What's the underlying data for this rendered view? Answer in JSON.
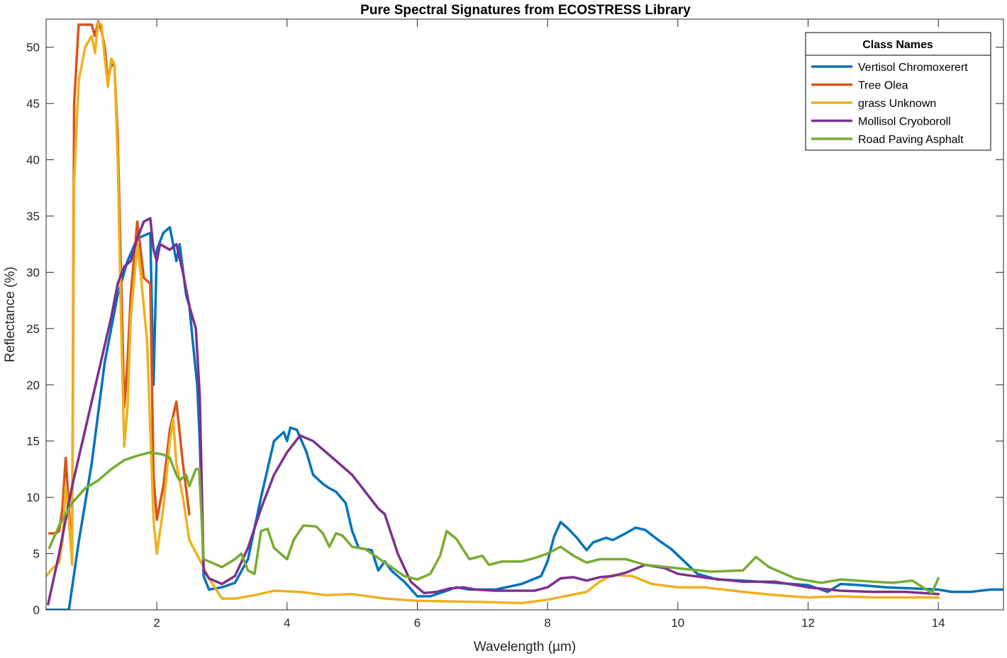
{
  "chart_data": {
    "type": "line",
    "title": "Pure Spectral Signatures from ECOSTRESS Library",
    "xlabel": "Wavelength (µm)",
    "ylabel": "Reflectance (%)",
    "xlim": [
      0.3,
      15
    ],
    "ylim": [
      0,
      52.5
    ],
    "xticks": [
      2,
      4,
      6,
      8,
      10,
      12,
      14
    ],
    "yticks": [
      0,
      5,
      10,
      15,
      20,
      25,
      30,
      35,
      40,
      45,
      50
    ],
    "grid": false,
    "legend": {
      "title": "Class Names",
      "position": "top-right"
    },
    "series": [
      {
        "name": "Vertisol Chromoxerert",
        "color": "#0072BD",
        "points": [
          [
            0.3,
            0
          ],
          [
            0.55,
            0
          ],
          [
            0.65,
            0
          ],
          [
            0.8,
            6
          ],
          [
            1.0,
            13
          ],
          [
            1.2,
            22
          ],
          [
            1.4,
            28
          ],
          [
            1.55,
            31
          ],
          [
            1.7,
            33
          ],
          [
            1.9,
            33.5
          ],
          [
            1.95,
            20
          ],
          [
            2.0,
            32
          ],
          [
            2.1,
            33.5
          ],
          [
            2.2,
            34
          ],
          [
            2.3,
            31
          ],
          [
            2.35,
            32.5
          ],
          [
            2.45,
            28
          ],
          [
            2.5,
            27
          ],
          [
            2.55,
            24
          ],
          [
            2.62,
            20
          ],
          [
            2.66,
            15
          ],
          [
            2.72,
            3
          ],
          [
            2.8,
            1.8
          ],
          [
            3.0,
            2.0
          ],
          [
            3.2,
            2.4
          ],
          [
            3.4,
            4.5
          ],
          [
            3.6,
            10
          ],
          [
            3.8,
            15
          ],
          [
            3.95,
            15.8
          ],
          [
            4.0,
            15
          ],
          [
            4.05,
            16.2
          ],
          [
            4.15,
            16
          ],
          [
            4.3,
            14
          ],
          [
            4.4,
            12
          ],
          [
            4.55,
            11.2
          ],
          [
            4.65,
            10.8
          ],
          [
            4.75,
            10.5
          ],
          [
            4.9,
            9.5
          ],
          [
            5.0,
            7
          ],
          [
            5.1,
            5.5
          ],
          [
            5.3,
            5.3
          ],
          [
            5.4,
            3.5
          ],
          [
            5.5,
            4.3
          ],
          [
            5.6,
            3.5
          ],
          [
            5.8,
            2.5
          ],
          [
            6.0,
            1.2
          ],
          [
            6.2,
            1.2
          ],
          [
            6.4,
            1.6
          ],
          [
            6.6,
            2.0
          ],
          [
            6.8,
            1.8
          ],
          [
            7.2,
            1.8
          ],
          [
            7.6,
            2.3
          ],
          [
            7.9,
            3.0
          ],
          [
            8.0,
            4.3
          ],
          [
            8.1,
            6.5
          ],
          [
            8.2,
            7.8
          ],
          [
            8.3,
            7.3
          ],
          [
            8.45,
            6.4
          ],
          [
            8.6,
            5.3
          ],
          [
            8.7,
            6.0
          ],
          [
            8.9,
            6.4
          ],
          [
            9.0,
            6.2
          ],
          [
            9.2,
            6.8
          ],
          [
            9.35,
            7.3
          ],
          [
            9.5,
            7.1
          ],
          [
            9.7,
            6.2
          ],
          [
            9.9,
            5.4
          ],
          [
            10.1,
            4.3
          ],
          [
            10.3,
            3.2
          ],
          [
            10.6,
            2.7
          ],
          [
            11.0,
            2.6
          ],
          [
            11.5,
            2.4
          ],
          [
            12.0,
            2.2
          ],
          [
            12.2,
            1.8
          ],
          [
            12.3,
            1.6
          ],
          [
            12.5,
            2.3
          ],
          [
            12.8,
            2.2
          ],
          [
            13.2,
            2.0
          ],
          [
            13.6,
            1.9
          ],
          [
            14.0,
            1.8
          ],
          [
            14.2,
            1.6
          ],
          [
            14.5,
            1.6
          ],
          [
            14.8,
            1.8
          ],
          [
            15.0,
            1.8
          ]
        ]
      },
      {
        "name": "Tree Olea",
        "color": "#D95319",
        "points": [
          [
            0.35,
            6.8
          ],
          [
            0.45,
            6.8
          ],
          [
            0.5,
            7
          ],
          [
            0.55,
            9
          ],
          [
            0.6,
            13.5
          ],
          [
            0.63,
            11
          ],
          [
            0.66,
            8
          ],
          [
            0.7,
            5
          ],
          [
            0.73,
            45
          ],
          [
            0.8,
            52
          ],
          [
            0.9,
            52
          ],
          [
            1.0,
            52
          ],
          [
            1.05,
            51
          ],
          [
            1.1,
            52.3
          ],
          [
            1.15,
            51.5
          ],
          [
            1.2,
            50
          ],
          [
            1.25,
            47
          ],
          [
            1.3,
            48.5
          ],
          [
            1.35,
            48.3
          ],
          [
            1.4,
            42
          ],
          [
            1.45,
            30
          ],
          [
            1.5,
            18
          ],
          [
            1.55,
            22
          ],
          [
            1.6,
            28
          ],
          [
            1.7,
            34.5
          ],
          [
            1.75,
            32
          ],
          [
            1.8,
            29.5
          ],
          [
            1.9,
            29
          ],
          [
            1.95,
            12
          ],
          [
            2.0,
            8
          ],
          [
            2.1,
            11
          ],
          [
            2.2,
            16
          ],
          [
            2.3,
            18.5
          ],
          [
            2.4,
            13
          ],
          [
            2.5,
            8.5
          ]
        ]
      },
      {
        "name": "grass Unknown",
        "color": "#EDB120",
        "points": [
          [
            0.3,
            3
          ],
          [
            0.4,
            3.7
          ],
          [
            0.5,
            4.2
          ],
          [
            0.55,
            6
          ],
          [
            0.6,
            11
          ],
          [
            0.65,
            8
          ],
          [
            0.7,
            4
          ],
          [
            0.73,
            38
          ],
          [
            0.8,
            47
          ],
          [
            0.9,
            50
          ],
          [
            1.0,
            51
          ],
          [
            1.05,
            49.5
          ],
          [
            1.1,
            52.2
          ],
          [
            1.15,
            52
          ],
          [
            1.2,
            49
          ],
          [
            1.25,
            46.5
          ],
          [
            1.3,
            49
          ],
          [
            1.35,
            48.5
          ],
          [
            1.4,
            40
          ],
          [
            1.45,
            26
          ],
          [
            1.5,
            14.5
          ],
          [
            1.55,
            18
          ],
          [
            1.6,
            26
          ],
          [
            1.7,
            32.5
          ],
          [
            1.75,
            30
          ],
          [
            1.85,
            24
          ],
          [
            1.95,
            8
          ],
          [
            2.0,
            5
          ],
          [
            2.1,
            9
          ],
          [
            2.2,
            15
          ],
          [
            2.25,
            17
          ],
          [
            2.3,
            13
          ],
          [
            2.4,
            10
          ],
          [
            2.5,
            6.2
          ],
          [
            2.7,
            4.0
          ],
          [
            2.8,
            2.8
          ],
          [
            3.0,
            1.0
          ],
          [
            3.2,
            1.0
          ],
          [
            3.5,
            1.3
          ],
          [
            3.8,
            1.7
          ],
          [
            4.2,
            1.6
          ],
          [
            4.6,
            1.3
          ],
          [
            5.0,
            1.4
          ],
          [
            5.5,
            1.0
          ],
          [
            6.0,
            0.8
          ],
          [
            7.0,
            0.7
          ],
          [
            7.6,
            0.6
          ],
          [
            8.0,
            0.9
          ],
          [
            8.6,
            1.6
          ],
          [
            8.8,
            2.5
          ],
          [
            9.0,
            3.1
          ],
          [
            9.3,
            3.0
          ],
          [
            9.6,
            2.3
          ],
          [
            10.0,
            2.0
          ],
          [
            10.4,
            2.0
          ],
          [
            11.0,
            1.6
          ],
          [
            11.5,
            1.3
          ],
          [
            12.0,
            1.1
          ],
          [
            12.5,
            1.2
          ],
          [
            13.0,
            1.1
          ],
          [
            13.5,
            1.1
          ],
          [
            14.0,
            1.1
          ]
        ]
      },
      {
        "name": "Mollisol Cryoboroll",
        "color": "#7E2F8E",
        "points": [
          [
            0.33,
            0.5
          ],
          [
            0.5,
            5
          ],
          [
            0.7,
            11
          ],
          [
            0.9,
            16
          ],
          [
            1.1,
            21
          ],
          [
            1.3,
            26
          ],
          [
            1.4,
            29
          ],
          [
            1.5,
            30.5
          ],
          [
            1.6,
            31
          ],
          [
            1.7,
            33
          ],
          [
            1.8,
            34.5
          ],
          [
            1.9,
            34.8
          ],
          [
            1.95,
            32
          ],
          [
            2.0,
            31
          ],
          [
            2.05,
            32.5
          ],
          [
            2.2,
            32
          ],
          [
            2.3,
            32.5
          ],
          [
            2.4,
            30
          ],
          [
            2.5,
            27
          ],
          [
            2.6,
            25
          ],
          [
            2.66,
            19
          ],
          [
            2.72,
            3.5
          ],
          [
            2.8,
            2.8
          ],
          [
            3.0,
            2.3
          ],
          [
            3.2,
            3.0
          ],
          [
            3.4,
            5.5
          ],
          [
            3.6,
            9
          ],
          [
            3.8,
            12
          ],
          [
            4.0,
            14
          ],
          [
            4.2,
            15.5
          ],
          [
            4.4,
            15
          ],
          [
            4.6,
            14
          ],
          [
            4.8,
            13
          ],
          [
            5.0,
            12
          ],
          [
            5.2,
            10.5
          ],
          [
            5.4,
            9.0
          ],
          [
            5.5,
            8.5
          ],
          [
            5.7,
            5
          ],
          [
            5.9,
            2.5
          ],
          [
            6.1,
            1.5
          ],
          [
            6.3,
            1.6
          ],
          [
            6.5,
            1.9
          ],
          [
            6.7,
            2.0
          ],
          [
            6.9,
            1.8
          ],
          [
            7.2,
            1.7
          ],
          [
            7.8,
            1.7
          ],
          [
            8.0,
            2.0
          ],
          [
            8.2,
            2.8
          ],
          [
            8.4,
            2.9
          ],
          [
            8.6,
            2.6
          ],
          [
            8.8,
            2.9
          ],
          [
            9.0,
            3.0
          ],
          [
            9.2,
            3.3
          ],
          [
            9.5,
            4.0
          ],
          [
            9.8,
            3.7
          ],
          [
            10.0,
            3.2
          ],
          [
            10.5,
            2.8
          ],
          [
            11.0,
            2.5
          ],
          [
            11.5,
            2.5
          ],
          [
            12.0,
            2.0
          ],
          [
            12.5,
            1.7
          ],
          [
            13.0,
            1.6
          ],
          [
            13.5,
            1.6
          ],
          [
            14.0,
            1.4
          ]
        ]
      },
      {
        "name": "Road Paving Asphalt",
        "color": "#77AC30",
        "points": [
          [
            0.35,
            5.5
          ],
          [
            0.5,
            7.5
          ],
          [
            0.7,
            9.5
          ],
          [
            0.9,
            10.8
          ],
          [
            1.1,
            11.5
          ],
          [
            1.3,
            12.5
          ],
          [
            1.5,
            13.3
          ],
          [
            1.7,
            13.7
          ],
          [
            1.9,
            14.0
          ],
          [
            2.1,
            13.8
          ],
          [
            2.2,
            13.5
          ],
          [
            2.3,
            12
          ],
          [
            2.35,
            11.5
          ],
          [
            2.45,
            12
          ],
          [
            2.5,
            11
          ],
          [
            2.6,
            12.5
          ],
          [
            2.65,
            12.5
          ],
          [
            2.72,
            4.5
          ],
          [
            2.8,
            4.3
          ],
          [
            3.0,
            3.8
          ],
          [
            3.2,
            4.5
          ],
          [
            3.3,
            5.0
          ],
          [
            3.4,
            3.5
          ],
          [
            3.5,
            3.2
          ],
          [
            3.6,
            7.0
          ],
          [
            3.7,
            7.2
          ],
          [
            3.8,
            5.5
          ],
          [
            3.9,
            5.0
          ],
          [
            4.0,
            4.5
          ],
          [
            4.1,
            6.2
          ],
          [
            4.25,
            7.5
          ],
          [
            4.45,
            7.4
          ],
          [
            4.55,
            6.8
          ],
          [
            4.65,
            5.6
          ],
          [
            4.75,
            6.8
          ],
          [
            4.85,
            6.6
          ],
          [
            5.0,
            5.6
          ],
          [
            5.2,
            5.4
          ],
          [
            5.4,
            4.6
          ],
          [
            5.6,
            3.8
          ],
          [
            5.8,
            3.0
          ],
          [
            6.0,
            2.7
          ],
          [
            6.2,
            3.2
          ],
          [
            6.35,
            4.8
          ],
          [
            6.45,
            7.0
          ],
          [
            6.6,
            6.3
          ],
          [
            6.8,
            4.5
          ],
          [
            7.0,
            4.8
          ],
          [
            7.1,
            4.0
          ],
          [
            7.3,
            4.3
          ],
          [
            7.6,
            4.3
          ],
          [
            7.8,
            4.6
          ],
          [
            8.0,
            5.0
          ],
          [
            8.2,
            5.6
          ],
          [
            8.4,
            4.8
          ],
          [
            8.6,
            4.2
          ],
          [
            8.8,
            4.5
          ],
          [
            9.2,
            4.5
          ],
          [
            9.5,
            4.0
          ],
          [
            10.0,
            3.7
          ],
          [
            10.5,
            3.4
          ],
          [
            11.0,
            3.5
          ],
          [
            11.2,
            4.7
          ],
          [
            11.4,
            3.8
          ],
          [
            11.8,
            2.8
          ],
          [
            12.2,
            2.4
          ],
          [
            12.5,
            2.7
          ],
          [
            13.0,
            2.5
          ],
          [
            13.3,
            2.4
          ],
          [
            13.6,
            2.6
          ],
          [
            13.9,
            1.5
          ],
          [
            14.0,
            2.8
          ]
        ]
      }
    ]
  }
}
